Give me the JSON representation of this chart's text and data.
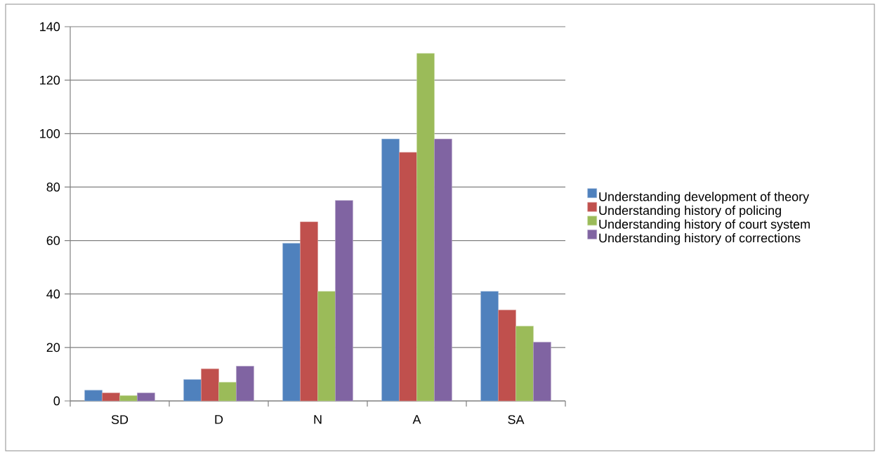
{
  "chart_data": {
    "type": "bar",
    "categories": [
      "SD",
      "D",
      "N",
      "A",
      "SA"
    ],
    "series": [
      {
        "name": "Understanding development of theory",
        "color": "#4f81bd",
        "values": [
          4,
          8,
          59,
          98,
          41
        ]
      },
      {
        "name": "Understanding history of policing",
        "color": "#c0504d",
        "values": [
          3,
          12,
          67,
          93,
          34
        ]
      },
      {
        "name": "Understanding history of court system",
        "color": "#9bbb59",
        "values": [
          2,
          7,
          41,
          130,
          28
        ]
      },
      {
        "name": "Understanding history of corrections",
        "color": "#8064a2",
        "values": [
          3,
          13,
          75,
          98,
          22
        ]
      }
    ],
    "ylim": [
      0,
      140
    ],
    "yticks": [
      0,
      20,
      40,
      60,
      80,
      100,
      120,
      140
    ],
    "grid": "y",
    "legend": "right"
  }
}
